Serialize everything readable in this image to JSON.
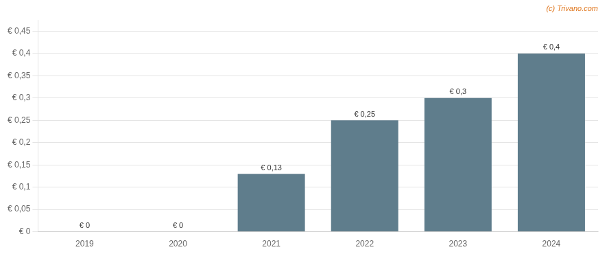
{
  "chart_data": {
    "type": "bar",
    "categories": [
      "2019",
      "2020",
      "2021",
      "2022",
      "2023",
      "2024"
    ],
    "values": [
      0,
      0,
      0.13,
      0.25,
      0.3,
      0.4
    ],
    "value_labels": [
      "€ 0",
      "€ 0",
      "€ 0,13",
      "€ 0,25",
      "€ 0,3",
      "€ 0,4"
    ],
    "data_labels": true,
    "color": "#5f7d8c",
    "ylim": [
      0,
      0.475
    ],
    "yticks": [
      {
        "value": 0,
        "label": "€ 0"
      },
      {
        "value": 0.05,
        "label": "€ 0,05"
      },
      {
        "value": 0.1,
        "label": "€ 0,1"
      },
      {
        "value": 0.15,
        "label": "€ 0,15"
      },
      {
        "value": 0.2,
        "label": "€ 0,2"
      },
      {
        "value": 0.25,
        "label": "€ 0,25"
      },
      {
        "value": 0.3,
        "label": "€ 0,3"
      },
      {
        "value": 0.35,
        "label": "€ 0,35"
      },
      {
        "value": 0.4,
        "label": "€ 0,4"
      },
      {
        "value": 0.45,
        "label": "€ 0,45"
      }
    ],
    "grid": true,
    "annotations": [
      "(c) Trivano.com"
    ]
  }
}
